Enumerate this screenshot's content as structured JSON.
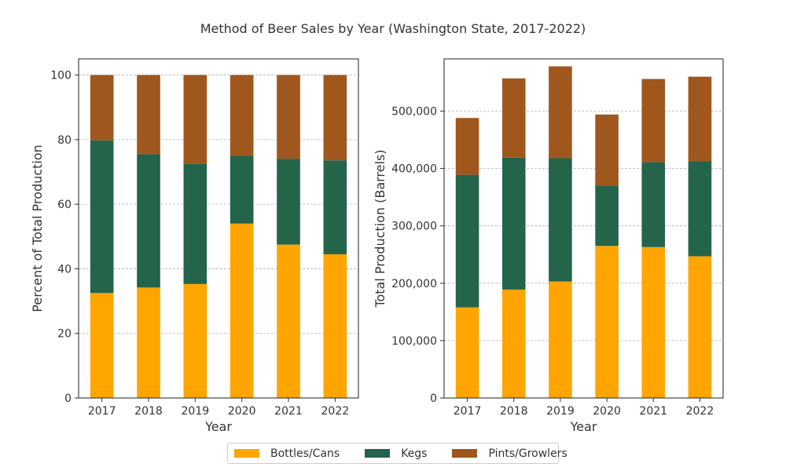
{
  "title": "Method of Beer Sales by Year (Washington State, 2017-2022)",
  "legend": {
    "items": [
      {
        "label": "Bottles/Cans",
        "color": "#ffa500"
      },
      {
        "label": "Kegs",
        "color": "#24644a"
      },
      {
        "label": "Pints/Growlers",
        "color": "#a0571e"
      }
    ],
    "position": "bottom-center"
  },
  "chart_data": [
    {
      "type": "bar",
      "stacked": true,
      "title": "Method of Beer Sales by Year (Washington State, 2017-2022)",
      "xlabel": "Year",
      "ylabel": "Percent of Total Production",
      "categories": [
        "2017",
        "2018",
        "2019",
        "2020",
        "2021",
        "2022"
      ],
      "ylim": [
        0,
        105
      ],
      "yticks": [
        0,
        20,
        40,
        60,
        80,
        100
      ],
      "ytick_labels": [
        "0",
        "20",
        "40",
        "60",
        "80",
        "100"
      ],
      "grid": true,
      "series": [
        {
          "name": "Bottles/Cans",
          "color": "#ffa500",
          "values": [
            32.5,
            34.2,
            35.3,
            54.0,
            47.5,
            44.5
          ]
        },
        {
          "name": "Kegs",
          "color": "#24644a",
          "values": [
            47.3,
            41.3,
            37.3,
            21.0,
            26.6,
            29.1
          ]
        },
        {
          "name": "Pints/Growlers",
          "color": "#a0571e",
          "values": [
            20.2,
            24.5,
            27.4,
            25.0,
            25.9,
            26.4
          ]
        }
      ]
    },
    {
      "type": "bar",
      "stacked": true,
      "xlabel": "Year",
      "ylabel": "Total Production (Barrels)",
      "categories": [
        "2017",
        "2018",
        "2019",
        "2020",
        "2021",
        "2022"
      ],
      "ylim": [
        0,
        591000
      ],
      "yticks": [
        0,
        100000,
        200000,
        300000,
        400000,
        500000
      ],
      "ytick_labels": [
        "0",
        "100,000",
        "200,000",
        "300,000",
        "400,000",
        "500,000"
      ],
      "grid": true,
      "series": [
        {
          "name": "Bottles/Cans",
          "color": "#ffa500",
          "values": [
            158000,
            189000,
            203000,
            265000,
            263000,
            247000
          ]
        },
        {
          "name": "Kegs",
          "color": "#24644a",
          "values": [
            231000,
            230000,
            215000,
            105000,
            148000,
            166000
          ]
        },
        {
          "name": "Pints/Growlers",
          "color": "#a0571e",
          "values": [
            99000,
            138000,
            160000,
            124000,
            145000,
            147000
          ]
        }
      ]
    }
  ]
}
